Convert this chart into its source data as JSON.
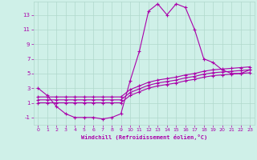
{
  "xlabel": "Windchill (Refroidissement éolien,°C)",
  "background_color": "#cff0e8",
  "grid_color": "#b0d8cc",
  "line_color": "#aa00aa",
  "marker": "+",
  "xlim": [
    -0.5,
    23.5
  ],
  "ylim": [
    -2.0,
    14.8
  ],
  "xticks": [
    0,
    1,
    2,
    3,
    4,
    5,
    6,
    7,
    8,
    9,
    10,
    11,
    12,
    13,
    14,
    15,
    16,
    17,
    18,
    19,
    20,
    21,
    22,
    23
  ],
  "yticks": [
    -1,
    1,
    3,
    5,
    7,
    9,
    11,
    13
  ],
  "series": [
    {
      "x": [
        0,
        1,
        2,
        3,
        4,
        5,
        6,
        7,
        8,
        9,
        10,
        11,
        12,
        13,
        14,
        15,
        16,
        17,
        18,
        19,
        20,
        21,
        22,
        23
      ],
      "y": [
        3,
        2,
        0.5,
        -0.5,
        -1,
        -1,
        -1,
        -1.2,
        -1,
        -0.5,
        4,
        8,
        13.5,
        14.5,
        13,
        14.5,
        14,
        11,
        7,
        6.5,
        5.5,
        5,
        5,
        5.5
      ]
    },
    {
      "x": [
        0,
        1,
        2,
        3,
        4,
        5,
        6,
        7,
        8,
        9,
        10,
        11,
        12,
        13,
        14,
        15,
        16,
        17,
        18,
        19,
        20,
        21,
        22,
        23
      ],
      "y": [
        1.8,
        1.8,
        1.8,
        1.8,
        1.8,
        1.8,
        1.8,
        1.8,
        1.8,
        1.8,
        2.8,
        3.3,
        3.8,
        4.1,
        4.3,
        4.5,
        4.8,
        5.0,
        5.3,
        5.5,
        5.6,
        5.7,
        5.8,
        5.9
      ]
    },
    {
      "x": [
        0,
        1,
        2,
        3,
        4,
        5,
        6,
        7,
        8,
        9,
        10,
        11,
        12,
        13,
        14,
        15,
        16,
        17,
        18,
        19,
        20,
        21,
        22,
        23
      ],
      "y": [
        1.4,
        1.4,
        1.4,
        1.4,
        1.4,
        1.4,
        1.4,
        1.4,
        1.4,
        1.4,
        2.4,
        2.9,
        3.4,
        3.7,
        3.9,
        4.1,
        4.4,
        4.6,
        4.9,
        5.1,
        5.2,
        5.3,
        5.4,
        5.5
      ]
    },
    {
      "x": [
        0,
        1,
        2,
        3,
        4,
        5,
        6,
        7,
        8,
        9,
        10,
        11,
        12,
        13,
        14,
        15,
        16,
        17,
        18,
        19,
        20,
        21,
        22,
        23
      ],
      "y": [
        1.0,
        1.0,
        1.0,
        1.0,
        1.0,
        1.0,
        1.0,
        1.0,
        1.0,
        1.0,
        2.0,
        2.5,
        3.0,
        3.3,
        3.5,
        3.7,
        4.0,
        4.2,
        4.5,
        4.7,
        4.8,
        4.9,
        5.0,
        5.1
      ]
    }
  ]
}
